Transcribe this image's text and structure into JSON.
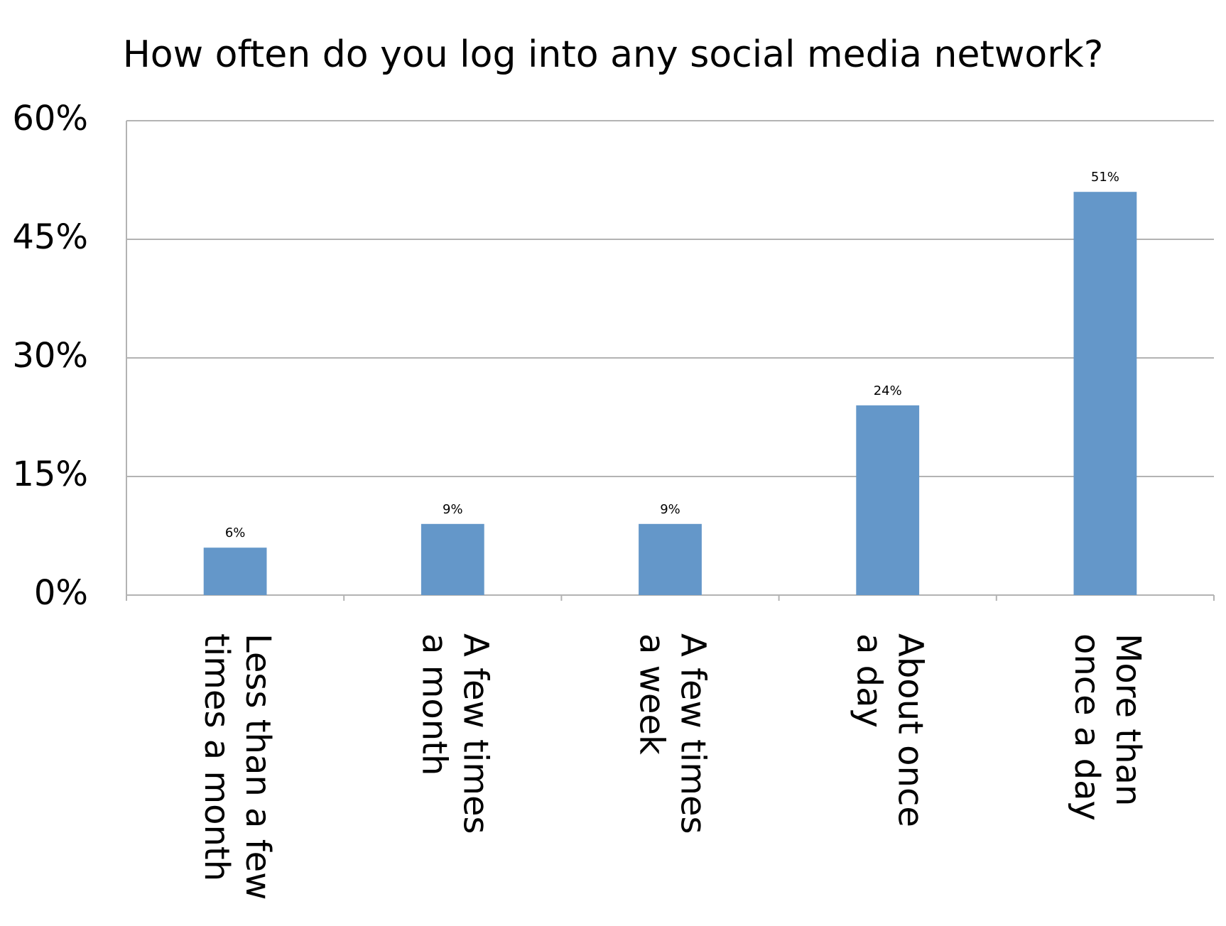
{
  "chart_data": {
    "type": "bar",
    "title": "How often do you log into any social media network?",
    "categories": [
      "Less than a few\ntimes a month",
      "A few times\na month",
      "A few times\na week",
      "About once\na day",
      "More than\nonce a day"
    ],
    "values": [
      6,
      9,
      9,
      24,
      51
    ],
    "value_labels": [
      "6%",
      "9%",
      "9%",
      "24%",
      "51%"
    ],
    "color": "#6497c9",
    "ylim": [
      0,
      60
    ],
    "yticks": [
      {
        "value": 0,
        "label": "0%"
      },
      {
        "value": 15,
        "label": "15%"
      },
      {
        "value": 30,
        "label": "30%"
      },
      {
        "value": 45,
        "label": "45%"
      },
      {
        "value": 60,
        "label": "60%"
      }
    ],
    "grid": true
  }
}
